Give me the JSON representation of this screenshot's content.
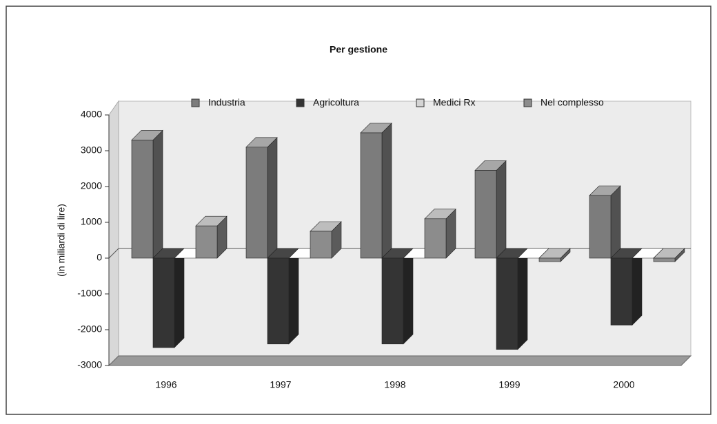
{
  "chart_data": {
    "type": "bar3d",
    "title": "Per gestione",
    "y_label": "(in miliardi di lire)",
    "categories": [
      "1996",
      "1997",
      "1998",
      "1999",
      "2000"
    ],
    "series": [
      {
        "name": "Industria",
        "color": "#7c7c7c",
        "values": [
          3300,
          3100,
          3500,
          2450,
          1750
        ]
      },
      {
        "name": "Agricoltura",
        "color": "#343434",
        "values": [
          -2500,
          -2400,
          -2400,
          -2550,
          -1870
        ]
      },
      {
        "name": "Medici Rx",
        "color": "#d4d4d4",
        "values": [
          0,
          0,
          0,
          0,
          0
        ]
      },
      {
        "name": "Nel complesso",
        "color": "#8c8c8c",
        "values": [
          900,
          750,
          1100,
          -100,
          -100
        ]
      }
    ],
    "ylim": [
      -3000,
      4000
    ],
    "yticks": [
      -3000,
      -2000,
      -1000,
      0,
      1000,
      2000,
      3000,
      4000
    ],
    "grid": false
  }
}
